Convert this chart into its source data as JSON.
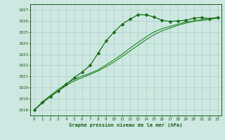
{
  "x": [
    0,
    1,
    2,
    3,
    4,
    5,
    6,
    7,
    8,
    9,
    10,
    11,
    12,
    13,
    14,
    15,
    16,
    17,
    18,
    19,
    20,
    21,
    22,
    23
  ],
  "line1": [
    1018.0,
    1018.7,
    1019.2,
    1019.7,
    1020.3,
    1020.9,
    1021.4,
    1022.0,
    1023.1,
    1024.2,
    1025.0,
    1025.7,
    1026.15,
    1026.55,
    1026.55,
    1026.35,
    1026.05,
    1025.95,
    1026.0,
    1026.05,
    1026.25,
    1026.3,
    1026.2,
    1026.3
  ],
  "line2": [
    1018.0,
    1018.6,
    1019.2,
    1019.7,
    1020.2,
    1020.6,
    1020.9,
    1021.2,
    1021.5,
    1021.9,
    1022.3,
    1022.8,
    1023.3,
    1023.8,
    1024.3,
    1024.75,
    1025.1,
    1025.35,
    1025.6,
    1025.8,
    1025.95,
    1026.05,
    1026.15,
    1026.25
  ],
  "line3": [
    1018.0,
    1018.7,
    1019.3,
    1019.85,
    1020.35,
    1020.75,
    1021.05,
    1021.3,
    1021.6,
    1022.05,
    1022.5,
    1023.0,
    1023.55,
    1024.05,
    1024.55,
    1025.0,
    1025.3,
    1025.5,
    1025.7,
    1025.9,
    1026.0,
    1026.1,
    1026.2,
    1026.3
  ],
  "line1_color": "#1a6b1a",
  "line23_color": "#2d8b2d",
  "bg_color": "#cce8e0",
  "grid_color": "#aacfc8",
  "text_color": "#1a5c1a",
  "axis_color": "#1a5c1a",
  "title": "Graphe pression niveau de la mer (hPa)",
  "ylim": [
    1017.5,
    1027.5
  ],
  "yticks": [
    1018,
    1019,
    1020,
    1021,
    1022,
    1023,
    1024,
    1025,
    1026,
    1027
  ],
  "xticks": [
    0,
    1,
    2,
    3,
    4,
    5,
    6,
    7,
    8,
    9,
    10,
    11,
    12,
    13,
    14,
    15,
    16,
    17,
    18,
    19,
    20,
    21,
    22,
    23
  ],
  "marker": "D",
  "marker_size": 2.5,
  "lw1": 0.9,
  "lw23": 0.85
}
